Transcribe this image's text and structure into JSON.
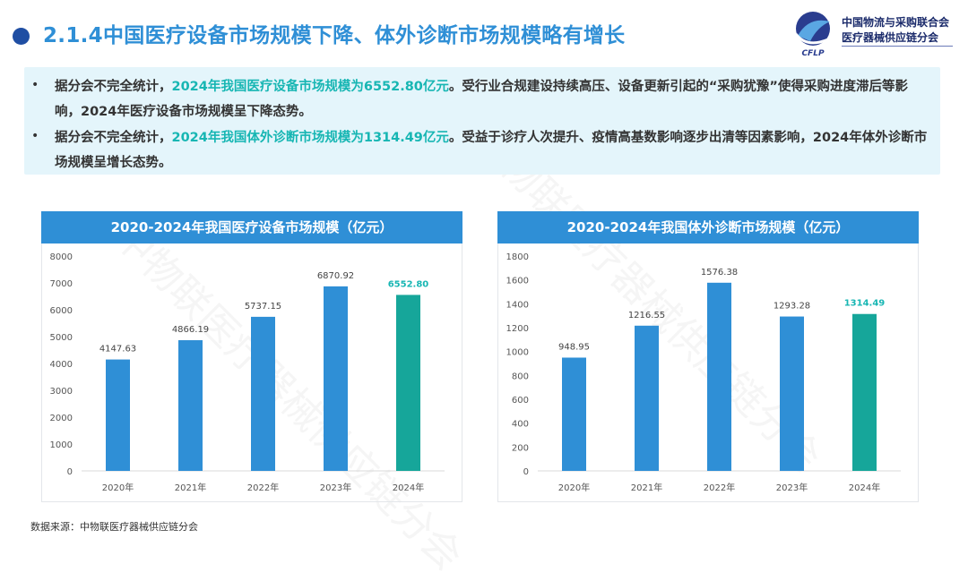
{
  "header": {
    "title": "2.1.4中国医疗设备市场规模下降、体外诊断市场规模略有增长"
  },
  "logo": {
    "line1": "中国物流与采购联合会",
    "line2": "医疗器械供应链分会",
    "mark_text": "CFLP"
  },
  "summary": {
    "items": [
      {
        "prefix": "据分会不完全统计，",
        "highlight": "2024年我国医疗设备市场规模为6552.80亿元",
        "suffix": "。受行业合规建设持续高压、设备更新引起的“采购犹豫”使得采购进度滞后等影响，2024年医疗设备市场规模呈下降态势。"
      },
      {
        "prefix": "据分会不完全统计，",
        "highlight": "2024年我国体外诊断市场规模为1314.49亿元",
        "suffix": "。受益于诊疗人次提升、疫情高基数影响逐步出清等因素影响，2024年体外诊断市场规模呈增长态势。"
      }
    ]
  },
  "chart_data": [
    {
      "type": "bar",
      "title": "2020-2024年我国医疗设备市场规模（亿元）",
      "categories": [
        "2020年",
        "2021年",
        "2022年",
        "2023年",
        "2024年"
      ],
      "values": [
        4147.63,
        4866.19,
        5737.15,
        6870.92,
        6552.8
      ],
      "labels": [
        "4147.63",
        "4866.19",
        "5737.15",
        "6870.92",
        "6552.80"
      ],
      "yticks": [
        0,
        1000,
        2000,
        3000,
        4000,
        5000,
        6000,
        7000,
        8000
      ],
      "ylim": [
        0,
        8000
      ],
      "bar_color": "#2f8fd6",
      "highlight_color": "#16a69a",
      "highlight_index": 4
    },
    {
      "type": "bar",
      "title": "2020-2024年我国体外诊断市场规模（亿元）",
      "categories": [
        "2020年",
        "2021年",
        "2022年",
        "2023年",
        "2024年"
      ],
      "values": [
        948.95,
        1216.55,
        1576.38,
        1293.28,
        1314.49
      ],
      "labels": [
        "948.95",
        "1216.55",
        "1576.38",
        "1293.28",
        "1314.49"
      ],
      "yticks": [
        0,
        200,
        400,
        600,
        800,
        1000,
        1200,
        1400,
        1600,
        1800
      ],
      "ylim": [
        0,
        1800
      ],
      "bar_color": "#2f8fd6",
      "highlight_color": "#16a69a",
      "highlight_index": 4
    }
  ],
  "footer": {
    "source": "数据来源：中物联医疗器械供应链分会"
  },
  "watermark": {
    "text": "中物联医疗器械供应链分会"
  }
}
